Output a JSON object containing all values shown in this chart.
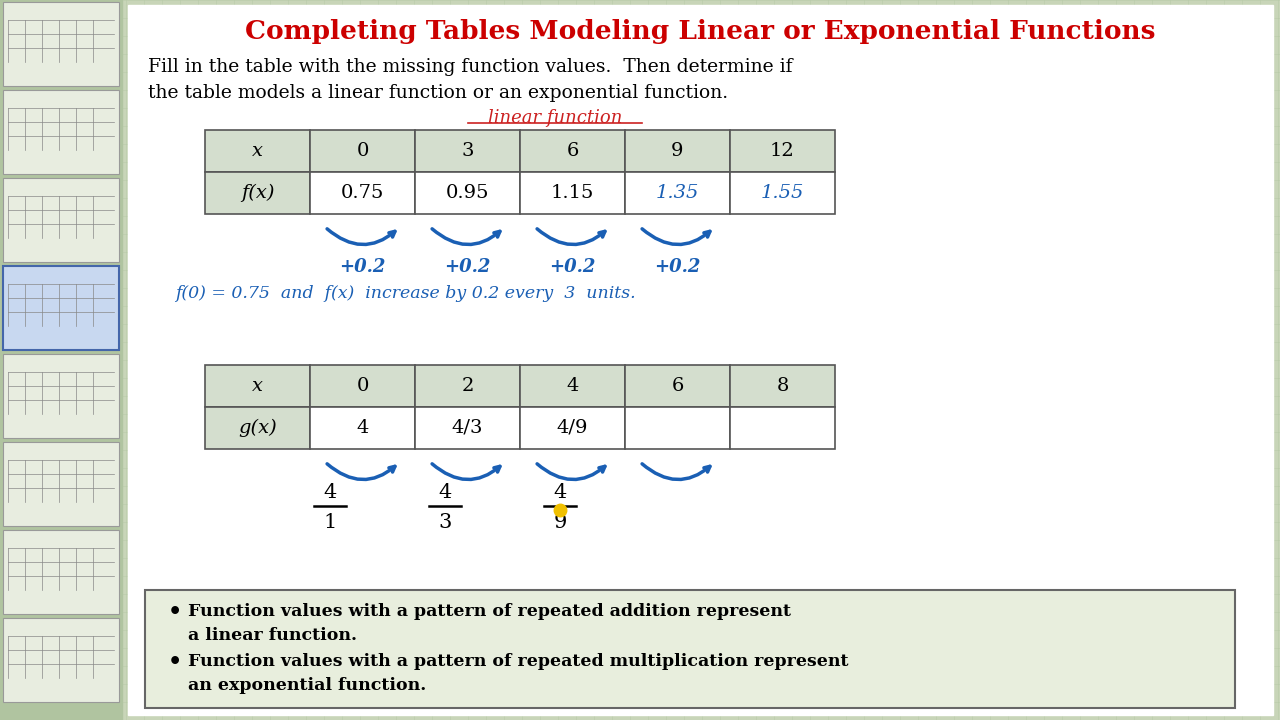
{
  "title": "Completing Tables Modeling Linear or Exponential Functions",
  "title_color": "#cc0000",
  "bg_color": "#c8d5b8",
  "main_bg": "#ffffff",
  "instruction_line1": "Fill in the table with the missing function values.  Then determine if",
  "instruction_line2": "the table models a linear function or an exponential function.",
  "linear_label": "linear function",
  "table1_headers": [
    "x",
    "0",
    "3",
    "6",
    "9",
    "12"
  ],
  "table1_row_label": "f(x)",
  "table1_values": [
    "0.75",
    "0.95",
    "1.15",
    "1.35",
    "1.55"
  ],
  "table1_filled": [
    true,
    true,
    true,
    false,
    false
  ],
  "arrows1_labels": [
    "+0.2",
    "+0.2",
    "+0.2",
    "+0.2"
  ],
  "note1_part1": "f(0) = 0.75  and  f(x)  increase by 0.2 every  3  units.",
  "table2_headers": [
    "x",
    "0",
    "2",
    "4",
    "6",
    "8"
  ],
  "table2_row_label": "g(x)",
  "table2_values": [
    "4",
    "4/3",
    "4/9",
    "",
    ""
  ],
  "table2_filled": [
    true,
    true,
    true,
    false,
    false
  ],
  "fractions": [
    "4/1",
    "4/3",
    "4/9"
  ],
  "bullet1_line1": "Function values with a pattern of repeated addition represent",
  "bullet1_line2": "a linear function.",
  "bullet2_line1": "Function values with a pattern of repeated multiplication represent",
  "bullet2_line2": "an exponential function.",
  "grid_color": "#afc49f",
  "table_header_bg": "#d4dece",
  "arrow_color": "#1a5fb4",
  "note_color": "#1a5fb4",
  "filled_values_color": "#1a5fb4",
  "bottom_box_bg": "#e8eedd",
  "sidebar_bg": "#b0c4a0",
  "sidebar_divider": "#888888"
}
